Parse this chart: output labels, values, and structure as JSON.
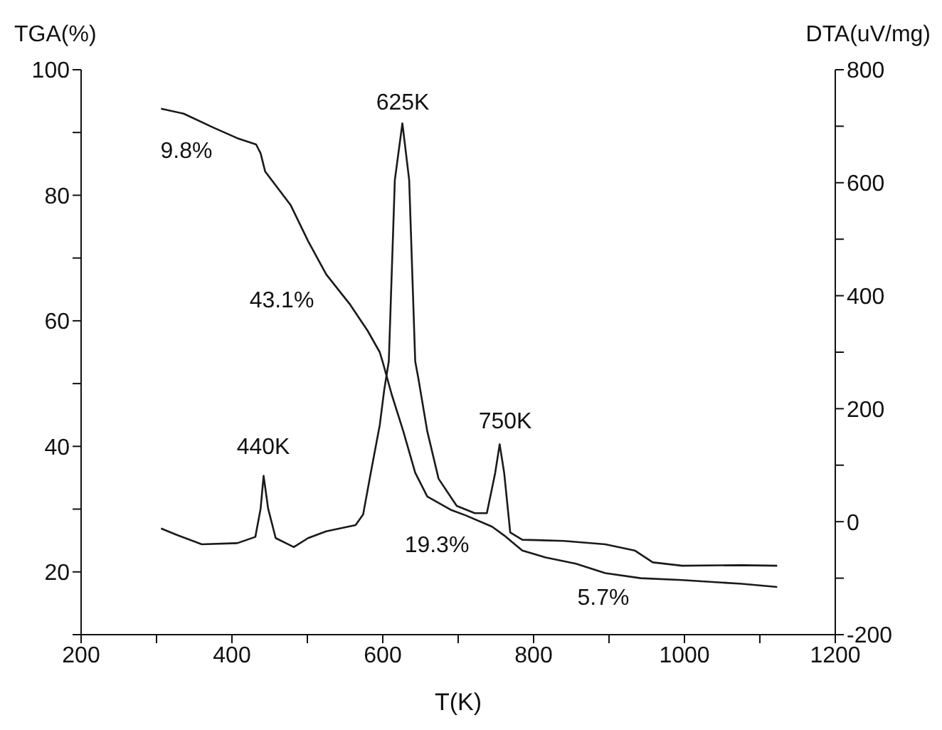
{
  "chart_data": {
    "type": "line",
    "xlabel": "T(K)",
    "ylabel": "TGA(%)",
    "y2label": "DTA(uV/mg)",
    "xlim": [
      200,
      1200
    ],
    "xticks": [
      200,
      {
        "value": 300,
        "label": null
      },
      400,
      {
        "value": 500,
        "label": null
      },
      600,
      {
        "value": 700,
        "label": null
      },
      800,
      {
        "value": 900,
        "label": null
      },
      1000,
      {
        "value": 1100,
        "label": null
      },
      1200
    ],
    "ylim": [
      10,
      100
    ],
    "yticks": [
      {
        "value": 10,
        "label": null
      },
      20,
      {
        "value": 30,
        "label": null
      },
      40,
      {
        "value": 50,
        "label": null
      },
      60,
      {
        "value": 70,
        "label": null
      },
      80,
      {
        "value": 90,
        "label": null
      },
      100
    ],
    "y2lim": [
      -200,
      800
    ],
    "y2ticks": [
      -200,
      {
        "value": -100,
        "label": null
      },
      0,
      {
        "value": 100,
        "label": null
      },
      200,
      {
        "value": 300,
        "label": null
      },
      400,
      {
        "value": 500,
        "label": null
      },
      600,
      {
        "value": 700,
        "label": null
      },
      800
    ],
    "series": [
      {
        "color": "#1a1a1a",
        "x": [
          306,
          336,
          375,
          407,
          432,
          438,
          444,
          478,
          501,
          525,
          556,
          580,
          596,
          600,
          612,
          627,
          643,
          659,
          690,
          710,
          745,
          761,
          785,
          816,
          856,
          895,
          942,
          997,
          1076,
          1123
        ],
        "values": [
          93.8,
          93.0,
          90.8,
          89.1,
          88.1,
          86.7,
          83.8,
          78.4,
          72.7,
          67.4,
          62.7,
          58.4,
          55.0,
          53.4,
          48.2,
          42.5,
          35.8,
          32.0,
          29.9,
          29.0,
          27.2,
          25.8,
          23.4,
          22.3,
          21.3,
          19.8,
          19.0,
          18.7,
          18.1,
          17.6
        ]
      },
      {
        "color": "#1a1a1a",
        "axis": "y2",
        "x": [
          306,
          328,
          360,
          407,
          431,
          438,
          442,
          448,
          458,
          482,
          501,
          525,
          564,
          574,
          584,
          596,
          602,
          608,
          616,
          626,
          635,
          643,
          647,
          659,
          674,
          698,
          722,
          738,
          749,
          755,
          761,
          769,
          785,
          840,
          895,
          934,
          958,
          997,
          1076,
          1123
        ],
        "values": [
          -12,
          -24,
          -40,
          -38,
          -27,
          23,
          81,
          23,
          -29,
          -45,
          -29,
          -17,
          -6,
          13,
          86,
          171,
          234,
          284,
          605,
          705,
          605,
          284,
          255,
          160,
          76,
          28,
          15,
          15,
          86,
          137,
          86,
          -19,
          -32,
          -34,
          -40,
          -51,
          -72,
          -78,
          -77,
          -78
        ]
      }
    ],
    "annotations": [
      "625K",
      "440K",
      "750K",
      "9.8%",
      "43.1%",
      "19.3%",
      "5.7%"
    ]
  }
}
